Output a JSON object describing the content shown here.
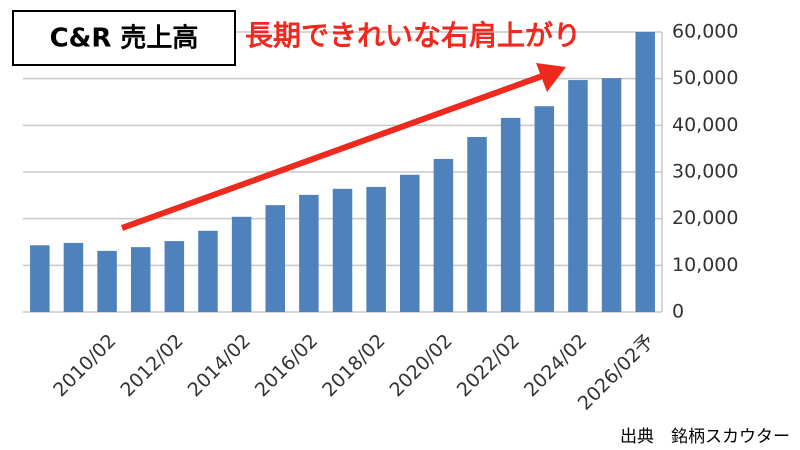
{
  "chart_data": {
    "type": "bar",
    "title": "C&R 売上高",
    "annotation": "長期できれいな右肩上がり",
    "source": "出典　銘柄スカウター",
    "categories": [
      null,
      null,
      "2010/02",
      null,
      "2012/02",
      null,
      "2014/02",
      null,
      "2016/02",
      null,
      "2018/02",
      null,
      "2020/02",
      null,
      "2022/02",
      null,
      "2024/02",
      null,
      "2026/02予"
    ],
    "values": [
      14300,
      14800,
      13100,
      13900,
      15200,
      17400,
      20400,
      22900,
      25100,
      26400,
      26800,
      29400,
      32800,
      37500,
      41600,
      44100,
      49700,
      50100,
      60000
    ],
    "color": "#4f81bd",
    "ylim": [
      0,
      60000
    ],
    "yticks": [
      0,
      {
        "value": 10000,
        "label": "10,000"
      },
      {
        "value": 20000,
        "label": "20,000"
      },
      {
        "value": 30000,
        "label": "30,000"
      },
      {
        "value": 40000,
        "label": "40,000"
      },
      {
        "value": 50000,
        "label": "50,000"
      },
      {
        "value": 60000,
        "label": "60,000"
      }
    ],
    "grid": true,
    "y_axis_side": "right"
  }
}
